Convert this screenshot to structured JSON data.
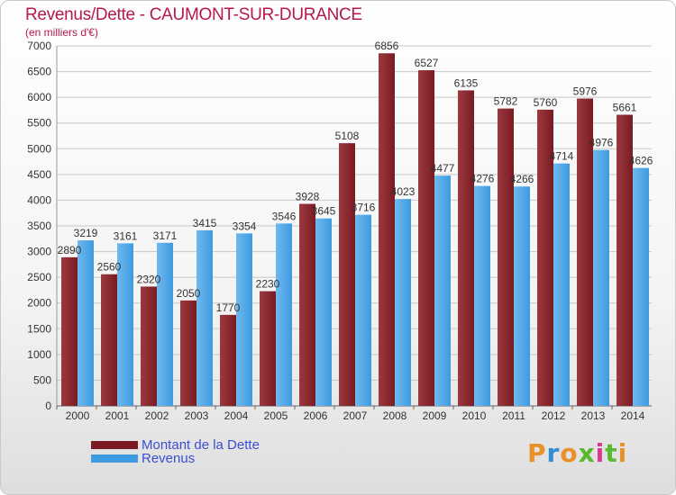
{
  "header": {
    "title": "Revenus/Dette - CAUMONT-SUR-DURANCE",
    "subtitle": "(en milliers d'€)"
  },
  "logo": {
    "text": "Proxiti",
    "letter_colors": [
      "#e8912b",
      "#2f8fd6",
      "#e8912b",
      "#58b82f",
      "#d83a8f",
      "#58b82f",
      "#e8912b"
    ]
  },
  "colors": {
    "dette": "#7a1a22",
    "dette_light": "#9a3a40",
    "revenus": "#3d9be0",
    "revenus_light": "#6fb8ee",
    "grid": "#c8c8c8",
    "axis_text": "#333333"
  },
  "chart_data": {
    "type": "bar",
    "title": "Revenus/Dette - CAUMONT-SUR-DURANCE",
    "subtitle": "(en milliers d'€)",
    "categories": [
      "2000",
      "2001",
      "2002",
      "2003",
      "2004",
      "2005",
      "2006",
      "2007",
      "2008",
      "2009",
      "2010",
      "2011",
      "2012",
      "2013",
      "2014"
    ],
    "series": [
      {
        "name": "Montant de la Dette",
        "values": [
          2890,
          2560,
          2320,
          2050,
          1770,
          2230,
          3928,
          5108,
          6856,
          6527,
          6135,
          5782,
          5760,
          5976,
          5661
        ],
        "labels": [
          "2890",
          "2560",
          "2320",
          "2050",
          "1770",
          "2230",
          "3928",
          "5108",
          "6856",
          "6527",
          "6135",
          "5782",
          "5760",
          "5976",
          "5661"
        ]
      },
      {
        "name": "Revenus",
        "values": [
          3219,
          3161,
          3171,
          3415,
          3354,
          3546,
          3645,
          3716,
          4023,
          4477,
          4276,
          4266,
          4714,
          4976,
          4626
        ],
        "labels": [
          "3219",
          "3161",
          "3171",
          "3415",
          "3354",
          "3546",
          "3645",
          "3716",
          "4023",
          "4477",
          "4276",
          "4266",
          "4714",
          "4976",
          "4626"
        ]
      }
    ],
    "ylim": [
      0,
      7000
    ],
    "yticks": [
      0,
      500,
      1000,
      1500,
      2000,
      2500,
      3000,
      3500,
      4000,
      4500,
      5000,
      5500,
      6000,
      6500,
      7000
    ],
    "grid": true,
    "legend": "bottom-left"
  }
}
